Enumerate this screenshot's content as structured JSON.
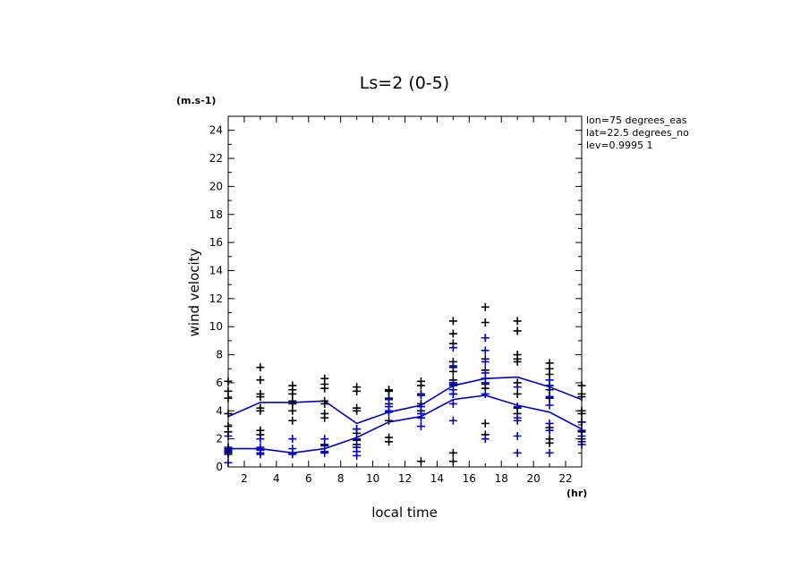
{
  "chart_data": {
    "type": "scatter",
    "title": "Ls=2 (0-5)",
    "xlabel": "local time",
    "ylabel": "wind velocity",
    "x_unit": "(hr)",
    "y_unit": "(m.s-1)",
    "xlim": [
      1,
      23
    ],
    "ylim": [
      0,
      25
    ],
    "x_ticks": [
      "2",
      "4",
      "6",
      "8",
      "10",
      "12",
      "14",
      "16",
      "18",
      "20",
      "22"
    ],
    "y_ticks": [
      "0",
      "2",
      "4",
      "6",
      "8",
      "10",
      "12",
      "14",
      "16",
      "18",
      "20",
      "22",
      "24"
    ],
    "info": [
      "lon=75 degrees_eas",
      "lat=22.5 degrees_no",
      "lev=0.9995 1"
    ],
    "colors": {
      "black_series": "#000000",
      "blue_series": "#0000cc",
      "lines": "#0000cc"
    },
    "series": [
      {
        "marker": "plus",
        "color": "#000000",
        "points": [
          [
            1,
            6.1
          ],
          [
            1,
            5.4
          ],
          [
            1,
            4.9
          ],
          [
            1,
            3.8
          ],
          [
            1,
            2.9
          ],
          [
            1,
            2.5
          ],
          [
            1,
            1.3
          ],
          [
            1,
            1.0
          ],
          [
            3,
            7.1
          ],
          [
            3,
            6.2
          ],
          [
            3,
            5.2
          ],
          [
            3,
            5.0
          ],
          [
            3,
            4.2
          ],
          [
            3,
            4.0
          ],
          [
            3,
            2.6
          ],
          [
            3,
            2.3
          ],
          [
            3,
            1.2
          ],
          [
            5,
            5.8
          ],
          [
            5,
            5.5
          ],
          [
            5,
            5.2
          ],
          [
            5,
            4.7
          ],
          [
            5,
            4.5
          ],
          [
            5,
            4.0
          ],
          [
            5,
            3.3
          ],
          [
            7,
            6.3
          ],
          [
            7,
            5.9
          ],
          [
            7,
            5.6
          ],
          [
            7,
            4.7
          ],
          [
            7,
            4.5
          ],
          [
            7,
            3.8
          ],
          [
            7,
            3.5
          ],
          [
            7,
            1.6
          ],
          [
            9,
            5.7
          ],
          [
            9,
            5.4
          ],
          [
            9,
            4.2
          ],
          [
            9,
            4.0
          ],
          [
            9,
            2.7
          ],
          [
            9,
            2.4
          ],
          [
            9,
            1.9
          ],
          [
            9,
            1.6
          ],
          [
            11,
            5.5
          ],
          [
            11,
            5.4
          ],
          [
            11,
            4.9
          ],
          [
            11,
            4.5
          ],
          [
            11,
            3.3
          ],
          [
            11,
            2.1
          ],
          [
            11,
            1.8
          ],
          [
            13,
            6.1
          ],
          [
            13,
            5.8
          ],
          [
            13,
            5.2
          ],
          [
            13,
            4.5
          ],
          [
            13,
            4.0
          ],
          [
            13,
            3.5
          ],
          [
            13,
            0.4
          ],
          [
            15,
            10.4
          ],
          [
            15,
            9.5
          ],
          [
            15,
            8.8
          ],
          [
            15,
            7.5
          ],
          [
            15,
            7.1
          ],
          [
            15,
            6.8
          ],
          [
            15,
            6.2
          ],
          [
            15,
            5.9
          ],
          [
            15,
            5.2
          ],
          [
            15,
            1.0
          ],
          [
            15,
            0.4
          ],
          [
            17,
            11.4
          ],
          [
            17,
            10.3
          ],
          [
            17,
            9.2
          ],
          [
            17,
            7.7
          ],
          [
            17,
            6.9
          ],
          [
            17,
            6.3
          ],
          [
            17,
            5.9
          ],
          [
            17,
            5.6
          ],
          [
            17,
            3.1
          ],
          [
            17,
            2.3
          ],
          [
            19,
            10.4
          ],
          [
            19,
            9.7
          ],
          [
            19,
            8.0
          ],
          [
            19,
            7.7
          ],
          [
            19,
            7.5
          ],
          [
            19,
            6.0
          ],
          [
            19,
            5.2
          ],
          [
            19,
            4.2
          ],
          [
            19,
            3.8
          ],
          [
            21,
            7.4
          ],
          [
            21,
            7.0
          ],
          [
            21,
            6.6
          ],
          [
            21,
            5.8
          ],
          [
            21,
            5.5
          ],
          [
            21,
            5.0
          ],
          [
            21,
            4.9
          ],
          [
            21,
            2.8
          ],
          [
            21,
            2.0
          ],
          [
            21,
            1.7
          ],
          [
            23,
            5.8
          ],
          [
            23,
            5.2
          ],
          [
            23,
            5.0
          ],
          [
            23,
            4.0
          ],
          [
            23,
            3.8
          ],
          [
            23,
            3.2
          ],
          [
            23,
            2.5
          ],
          [
            23,
            2.0
          ]
        ]
      },
      {
        "marker": "plus",
        "color": "#0000cc",
        "points": [
          [
            1,
            2.2
          ],
          [
            1,
            1.4
          ],
          [
            1,
            1.2
          ],
          [
            1,
            1.1
          ],
          [
            1,
            0.9
          ],
          [
            1,
            0.3
          ],
          [
            3,
            2.0
          ],
          [
            3,
            1.4
          ],
          [
            3,
            1.2
          ],
          [
            3,
            1.0
          ],
          [
            3,
            0.9
          ],
          [
            5,
            2.0
          ],
          [
            5,
            1.3
          ],
          [
            5,
            1.0
          ],
          [
            5,
            0.9
          ],
          [
            7,
            2.0
          ],
          [
            7,
            1.5
          ],
          [
            7,
            1.1
          ],
          [
            7,
            1.0
          ],
          [
            9,
            2.7
          ],
          [
            9,
            2.0
          ],
          [
            9,
            1.4
          ],
          [
            9,
            1.1
          ],
          [
            9,
            0.8
          ],
          [
            11,
            4.8
          ],
          [
            11,
            4.3
          ],
          [
            11,
            4.0
          ],
          [
            11,
            3.9
          ],
          [
            13,
            5.1
          ],
          [
            13,
            4.3
          ],
          [
            13,
            3.8
          ],
          [
            13,
            3.5
          ],
          [
            13,
            2.9
          ],
          [
            15,
            8.5
          ],
          [
            15,
            7.2
          ],
          [
            15,
            6.0
          ],
          [
            15,
            5.8
          ],
          [
            15,
            5.5
          ],
          [
            15,
            5.2
          ],
          [
            15,
            4.5
          ],
          [
            15,
            3.3
          ],
          [
            17,
            9.2
          ],
          [
            17,
            8.3
          ],
          [
            17,
            7.5
          ],
          [
            17,
            6.7
          ],
          [
            17,
            6.3
          ],
          [
            17,
            6.0
          ],
          [
            17,
            5.2
          ],
          [
            17,
            2.0
          ],
          [
            19,
            5.7
          ],
          [
            19,
            4.3
          ],
          [
            19,
            3.5
          ],
          [
            19,
            3.3
          ],
          [
            19,
            2.2
          ],
          [
            19,
            1.0
          ],
          [
            21,
            6.2
          ],
          [
            21,
            5.8
          ],
          [
            21,
            5.0
          ],
          [
            21,
            4.4
          ],
          [
            21,
            3.1
          ],
          [
            21,
            2.6
          ],
          [
            21,
            1.0
          ],
          [
            23,
            3.2
          ],
          [
            23,
            2.6
          ],
          [
            23,
            2.2
          ],
          [
            23,
            1.8
          ],
          [
            23,
            1.6
          ]
        ]
      }
    ],
    "lines": [
      {
        "color": "#0000cc",
        "x": [
          1,
          3,
          5,
          7,
          9,
          11,
          13,
          15,
          17,
          19,
          21,
          23
        ],
        "y": [
          3.6,
          4.6,
          4.6,
          4.7,
          3.1,
          3.9,
          4.4,
          5.8,
          6.3,
          6.4,
          5.7,
          4.8
        ]
      },
      {
        "color": "#0000cc",
        "x": [
          1,
          3,
          5,
          7,
          9,
          11,
          13,
          15,
          17,
          19,
          21,
          23
        ],
        "y": [
          1.3,
          1.3,
          1.0,
          1.3,
          2.1,
          3.2,
          3.6,
          4.8,
          5.1,
          4.4,
          3.9,
          2.7
        ]
      }
    ]
  }
}
